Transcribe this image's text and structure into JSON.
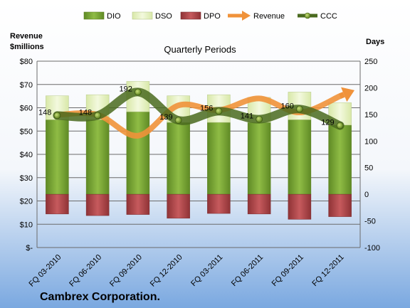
{
  "chart_data": {
    "type": "bar",
    "title": "Quarterly Periods",
    "company": "Cambrex Corporation.",
    "left_axis_title": [
      "Revenue",
      "$millions"
    ],
    "right_axis_title": "Days",
    "left_ylim": [
      0,
      80
    ],
    "left_ticks": [
      "$-",
      "$10",
      "$20",
      "$30",
      "$40",
      "$50",
      "$60",
      "$70",
      "$80"
    ],
    "right_ylim": [
      -100,
      250
    ],
    "right_ticks": [
      "-100",
      "-50",
      "0",
      "50",
      "100",
      "150",
      "200",
      "250"
    ],
    "categories": [
      "FQ 03-2010",
      "FQ 06-2010",
      "FQ 09-2010",
      "FQ 12-2010",
      "FQ 03-2011",
      "FQ 06-2011",
      "FQ 09-2011",
      "FQ 12-2011"
    ],
    "series": [
      {
        "name": "DIO",
        "axis": "right",
        "values": [
          140,
          140,
          155,
          135,
          135,
          135,
          140,
          130
        ]
      },
      {
        "name": "DSO",
        "axis": "right",
        "values": [
          45,
          47,
          57,
          50,
          52,
          47,
          52,
          42
        ]
      },
      {
        "name": "DPO",
        "axis": "right",
        "values": [
          -37,
          -40,
          -38,
          -45,
          -36,
          -37,
          -47,
          -42
        ]
      },
      {
        "name": "Revenue",
        "axis": "left",
        "values": [
          57,
          57,
          48,
          61,
          59,
          64,
          58,
          65
        ]
      },
      {
        "name": "CCC",
        "axis": "right",
        "values": [
          148,
          148,
          192,
          139,
          156,
          141,
          160,
          129
        ]
      }
    ],
    "ccc_labels": [
      "148",
      "148",
      "192",
      "139",
      "156",
      "141",
      "160",
      "129"
    ],
    "legend": [
      "DIO",
      "DSO",
      "DPO",
      "Revenue",
      "CCC"
    ],
    "legend_position": "top",
    "grid": true,
    "colors": {
      "dio": "#7ea63a",
      "dso": "#e6f2c4",
      "dpo": "#b64a4d",
      "revenue": "#f0923a",
      "ccc": "#4a6a1f",
      "gridline": "#6b6b6b",
      "background_top": "#ffffff",
      "background_bottom": "#7aa8e0"
    }
  }
}
